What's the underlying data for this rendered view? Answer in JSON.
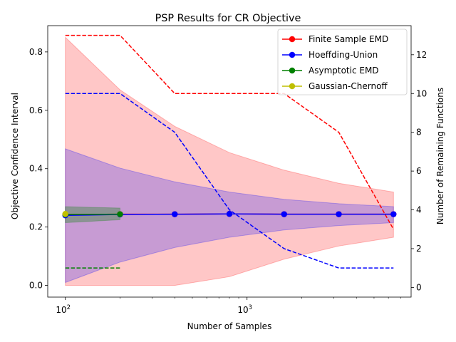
{
  "chart_data": {
    "type": "line",
    "title": "PSP Results for CR Objective",
    "xlabel": "Number of Samples",
    "ylabel": "Objective Confidence Interval",
    "y2label": "Number of Remaining Functions",
    "xscale": "log",
    "xlim": [
      80,
      8000
    ],
    "ylim": [
      -0.04,
      0.89
    ],
    "y2lim": [
      -0.5,
      13.5
    ],
    "x_ticks": [
      {
        "value": 100,
        "base": "10",
        "exp": "2"
      },
      {
        "value": 1000,
        "base": "10",
        "exp": "3"
      }
    ],
    "y_ticks": [
      "0.0",
      "0.2",
      "0.4",
      "0.6",
      "0.8"
    ],
    "y2_ticks": [
      "0",
      "2",
      "4",
      "6",
      "8",
      "10",
      "12"
    ],
    "legend_position": "top-right",
    "series": [
      {
        "name": "Finite Sample EMD",
        "color": "#ff0000",
        "x": [
          100,
          200,
          400,
          800,
          1600,
          3200,
          6400
        ],
        "mean": [
          0.243,
          0.244,
          0.244,
          0.245,
          0.244,
          0.244,
          0.244
        ],
        "lower": [
          0.0,
          0.0,
          0.0,
          0.03,
          0.09,
          0.135,
          0.165
        ],
        "upper": [
          0.85,
          0.67,
          0.545,
          0.455,
          0.395,
          0.35,
          0.32
        ],
        "remaining": [
          13,
          13,
          10,
          10,
          10,
          8,
          3
        ]
      },
      {
        "name": "Hoeffding-Union",
        "color": "#0000ff",
        "x": [
          100,
          200,
          400,
          800,
          1600,
          3200,
          6400
        ],
        "mean": [
          0.24,
          0.243,
          0.244,
          0.245,
          0.244,
          0.244,
          0.244
        ],
        "lower": [
          0.01,
          0.08,
          0.13,
          0.165,
          0.19,
          0.205,
          0.215
        ],
        "upper": [
          0.468,
          0.402,
          0.355,
          0.32,
          0.295,
          0.28,
          0.27
        ],
        "remaining": [
          10,
          10,
          8,
          4,
          2,
          1,
          1
        ]
      },
      {
        "name": "Asymptotic EMD",
        "color": "#008000",
        "x": [
          100,
          200
        ],
        "mean": [
          0.243,
          0.244
        ],
        "lower": [
          0.215,
          0.225
        ],
        "upper": [
          0.27,
          0.265
        ],
        "remaining": [
          1,
          1
        ]
      },
      {
        "name": "Gaussian-Chernoff",
        "color": "#bfbf00",
        "x": [
          100
        ],
        "mean": [
          0.245
        ],
        "lower": [
          0.245
        ],
        "upper": [
          0.245
        ],
        "remaining": []
      }
    ]
  }
}
